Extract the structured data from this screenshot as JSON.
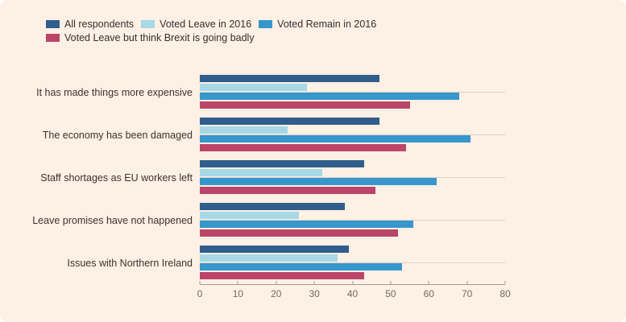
{
  "colors": {
    "background": "#fdf0e4",
    "canvas": "#ffffff",
    "axis_line": "#a39a8d",
    "tick_label": "#746b60",
    "category_label": "#3b342e",
    "gridline": "#ded4c7"
  },
  "legend": [
    {
      "label": "All respondents",
      "color": "#2f5e8c"
    },
    {
      "label": "Voted Leave in 2016",
      "color": "#a6d8e6"
    },
    {
      "label": "Voted Remain in 2016",
      "color": "#3796cc"
    },
    {
      "label": "Voted Leave but think Brexit is going badly",
      "color": "#ba4569"
    }
  ],
  "chart_data": {
    "type": "bar",
    "orientation": "horizontal",
    "categories": [
      "It has made things more expensive",
      "The economy has been damaged",
      "Staff shortages as EU workers left",
      "Leave promises have not happened",
      "Issues with Northern Ireland"
    ],
    "series": [
      {
        "name": "All respondents",
        "values": [
          47,
          47,
          43,
          38,
          39
        ]
      },
      {
        "name": "Voted Leave in 2016",
        "values": [
          28,
          23,
          32,
          26,
          36
        ]
      },
      {
        "name": "Voted Remain in 2016",
        "values": [
          68,
          71,
          62,
          56,
          53
        ]
      },
      {
        "name": "Voted Leave but think Brexit is going badly",
        "values": [
          55,
          54,
          46,
          52,
          43
        ]
      }
    ],
    "xlabel": "",
    "ylabel": "",
    "xlim": [
      0,
      80
    ],
    "xticks": [
      0,
      10,
      20,
      30,
      40,
      50,
      60,
      70,
      80
    ],
    "grid": "per-category horizontal line",
    "legend_position": "top-left"
  }
}
